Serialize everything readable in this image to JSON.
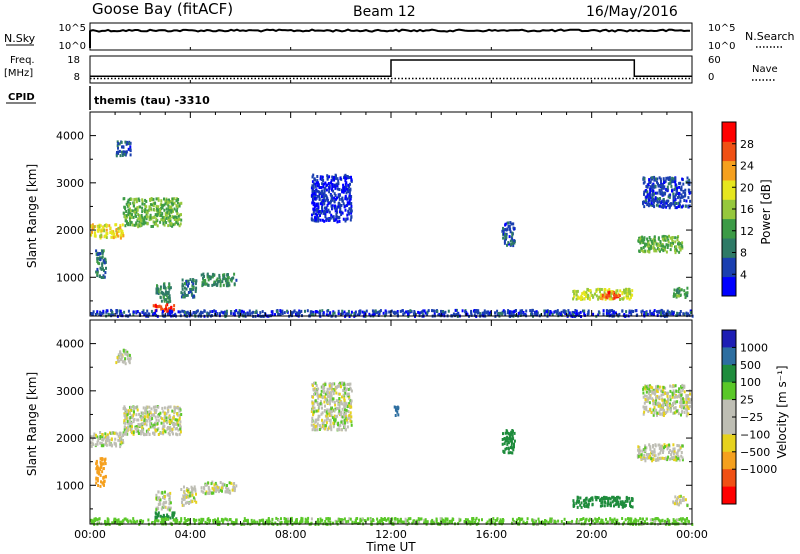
{
  "header": {
    "station": "Goose Bay (fitACF)",
    "beam": "Beam 12",
    "date": "16/May/2016"
  },
  "side_labels": {
    "nsky": "N.Sky",
    "nsearch": "N.Search",
    "freq": "Freq.",
    "freq_unit": "[MHz]",
    "nave": "Nave",
    "cpid": "CPID",
    "cpid_text": "themis (tau) -3310"
  },
  "noise_panel": {
    "ticks_left": [
      "10^5",
      "10^0"
    ],
    "ticks_right": [
      "10^5",
      "10^0"
    ],
    "nsky_level": 0.72,
    "nsearch_level": 0.72
  },
  "freq_panel": {
    "ticks_left": [
      "18",
      "8"
    ],
    "ticks_right": [
      "60",
      "0"
    ],
    "segments": [
      {
        "start": 0.0,
        "end": 12.0,
        "freq": 10.5
      },
      {
        "start": 12.0,
        "end": 21.7,
        "freq": 16.5
      },
      {
        "start": 21.7,
        "end": 24.0,
        "freq": 10.5
      }
    ],
    "nave": 10
  },
  "colors": {
    "power_scale": [
      "#0000ff",
      "#1a3fb0",
      "#2e7a66",
      "#3c9b46",
      "#96c83c",
      "#e6e61e",
      "#f5a01e",
      "#f05014",
      "#ff0000"
    ],
    "velocity_scale": [
      "#ff0000",
      "#f05014",
      "#f5a01e",
      "#e6d21e",
      "#bebeb4",
      "#bebeb4",
      "#5ac828",
      "#1e8c3c",
      "#2d6ea0",
      "#1e1eb4"
    ]
  },
  "chart_data": [
    {
      "type": "heatmap",
      "title": "",
      "quantity": "Power",
      "xlabel": "",
      "ylabel": "Slant Range [km]",
      "xlim": [
        0,
        24
      ],
      "ylim": [
        180,
        4500
      ],
      "x_ticks": [
        "00:00",
        "04:00",
        "08:00",
        "12:00",
        "16:00",
        "20:00",
        "00:00"
      ],
      "y_ticks": [
        1000,
        2000,
        3000,
        4000
      ],
      "colorbar": {
        "label": "Power [dB]",
        "ticks": [
          4,
          8,
          12,
          16,
          20,
          24,
          28
        ],
        "range": [
          0,
          32
        ]
      },
      "regions": [
        {
          "t": [
            0.0,
            1.3
          ],
          "r": [
            1850,
            2150
          ],
          "value": 20
        },
        {
          "t": [
            1.3,
            3.6
          ],
          "r": [
            2100,
            2700
          ],
          "value": 14
        },
        {
          "t": [
            0.2,
            0.6
          ],
          "r": [
            1000,
            1600
          ],
          "value": 9
        },
        {
          "t": [
            1.0,
            1.6
          ],
          "r": [
            3600,
            3900
          ],
          "value": 6
        },
        {
          "t": [
            2.6,
            3.2
          ],
          "r": [
            500,
            900
          ],
          "value": 10
        },
        {
          "t": [
            2.5,
            3.4
          ],
          "r": [
            300,
            450
          ],
          "value": 28
        },
        {
          "t": [
            4.4,
            5.8
          ],
          "r": [
            850,
            1100
          ],
          "value": 10
        },
        {
          "t": [
            3.6,
            4.2
          ],
          "r": [
            600,
            1000
          ],
          "value": 8
        },
        {
          "t": [
            0.0,
            24.0
          ],
          "r": [
            200,
            330
          ],
          "value": 5
        },
        {
          "t": [
            8.8,
            10.4
          ],
          "r": [
            2200,
            3200
          ],
          "value": 4
        },
        {
          "t": [
            19.2,
            21.6
          ],
          "r": [
            560,
            780
          ],
          "value": 18
        },
        {
          "t": [
            20.3,
            21.1
          ],
          "r": [
            570,
            720
          ],
          "value": 27
        },
        {
          "t": [
            21.8,
            23.6
          ],
          "r": [
            1550,
            1900
          ],
          "value": 14
        },
        {
          "t": [
            22.0,
            23.9
          ],
          "r": [
            2500,
            3150
          ],
          "value": 5
        },
        {
          "t": [
            23.2,
            23.8
          ],
          "r": [
            600,
            800
          ],
          "value": 12
        },
        {
          "t": [
            16.4,
            16.9
          ],
          "r": [
            1700,
            2200
          ],
          "value": 6
        }
      ]
    },
    {
      "type": "heatmap",
      "title": "",
      "quantity": "Velocity",
      "xlabel": "Time UT",
      "ylabel": "Slant Range [km]",
      "xlim": [
        0,
        24
      ],
      "ylim": [
        180,
        4500
      ],
      "x_ticks": [
        "00:00",
        "04:00",
        "08:00",
        "12:00",
        "16:00",
        "20:00",
        "00:00"
      ],
      "y_ticks": [
        1000,
        2000,
        3000,
        4000
      ],
      "colorbar": {
        "label": "Velocity [m s⁻¹]",
        "ticks": [
          "1000",
          "500",
          "100",
          "25",
          "−25",
          "−100",
          "−500",
          "−1000"
        ]
      },
      "regions": [
        {
          "t": [
            0.0,
            1.3
          ],
          "r": [
            1850,
            2150
          ],
          "value": 0
        },
        {
          "t": [
            1.3,
            3.6
          ],
          "r": [
            2100,
            2700
          ],
          "value": 0
        },
        {
          "t": [
            0.2,
            0.6
          ],
          "r": [
            1000,
            1600
          ],
          "value": -150
        },
        {
          "t": [
            1.0,
            1.6
          ],
          "r": [
            3600,
            3900
          ],
          "value": 0
        },
        {
          "t": [
            2.6,
            3.2
          ],
          "r": [
            500,
            900
          ],
          "value": 0
        },
        {
          "t": [
            2.5,
            3.4
          ],
          "r": [
            300,
            450
          ],
          "value": 250
        },
        {
          "t": [
            4.4,
            5.8
          ],
          "r": [
            850,
            1100
          ],
          "value": 0
        },
        {
          "t": [
            3.6,
            4.2
          ],
          "r": [
            600,
            1000
          ],
          "value": 0
        },
        {
          "t": [
            0.0,
            24.0
          ],
          "r": [
            200,
            330
          ],
          "value": 60
        },
        {
          "t": [
            8.8,
            10.4
          ],
          "r": [
            2200,
            3200
          ],
          "value": 0
        },
        {
          "t": [
            19.2,
            21.6
          ],
          "r": [
            560,
            780
          ],
          "value": 150
        },
        {
          "t": [
            21.8,
            23.6
          ],
          "r": [
            1550,
            1900
          ],
          "value": 0
        },
        {
          "t": [
            22.0,
            23.9
          ],
          "r": [
            2500,
            3150
          ],
          "value": 0
        },
        {
          "t": [
            23.2,
            23.8
          ],
          "r": [
            600,
            800
          ],
          "value": 0
        },
        {
          "t": [
            16.4,
            16.9
          ],
          "r": [
            1700,
            2200
          ],
          "value": 150
        },
        {
          "t": [
            12.1,
            12.3
          ],
          "r": [
            2500,
            2700
          ],
          "value": 700
        }
      ]
    }
  ]
}
